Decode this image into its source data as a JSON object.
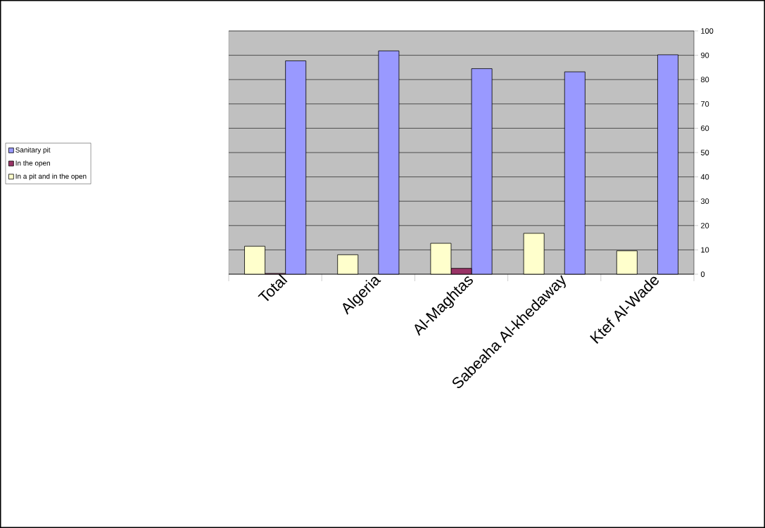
{
  "chart_data": {
    "type": "bar",
    "categories": [
      "Total",
      "Algeria",
      "Al-Maghtas",
      "Sabeaha Al-khedaway",
      "Ktef Al-Wade"
    ],
    "series": [
      {
        "name": "Sanitary pit",
        "color": "#9999ff",
        "values": [
          87.7,
          91.8,
          84.5,
          83.2,
          90.2
        ]
      },
      {
        "name": "In the open",
        "color": "#993366",
        "values": [
          0.3,
          null,
          2.4,
          null,
          null
        ]
      },
      {
        "name": "In a pit and in the open",
        "color": "#ffffcc",
        "values": [
          11.5,
          8.0,
          12.7,
          16.8,
          9.6
        ]
      }
    ],
    "ylim": [
      0,
      100
    ],
    "yticks": [
      0,
      10,
      20,
      30,
      40,
      50,
      60,
      70,
      80,
      90,
      100
    ],
    "grid": "y",
    "legend": "left"
  }
}
